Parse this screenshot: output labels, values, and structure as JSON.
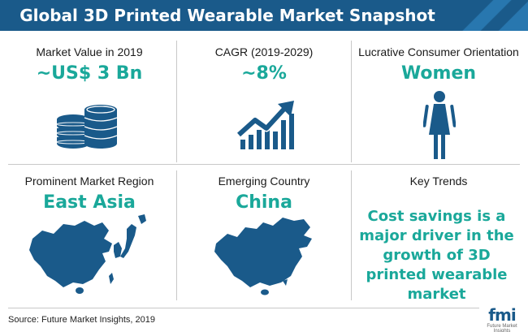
{
  "title": "Global 3D Printed Wearable Market Snapshot",
  "colors": {
    "banner": "#1a5a8a",
    "accent": "#1aa89a",
    "icon": "#1a5a8a"
  },
  "cells": {
    "market_value": {
      "label": "Market Value in 2019",
      "value": "~US$ 3 Bn",
      "icon": "coin-stack-icon"
    },
    "cagr": {
      "label": "CAGR (2019-2029)",
      "value": "~8%",
      "icon": "growth-chart-icon"
    },
    "consumer": {
      "label": "Lucrative Consumer Orientation",
      "value": "Women",
      "icon": "woman-icon"
    },
    "region": {
      "label": "Prominent Market Region",
      "value": "East Asia",
      "icon": "east-asia-map-icon"
    },
    "country": {
      "label": "Emerging Country",
      "value": "China",
      "icon": "china-map-icon"
    },
    "trends": {
      "label": "Key Trends",
      "text": "Cost savings is a major driver in the growth of 3D printed wearable market"
    }
  },
  "footer": {
    "source": "Source: Future Market Insights, 2019",
    "logo": "fmi",
    "logo_sub": "Future Market Insights"
  }
}
